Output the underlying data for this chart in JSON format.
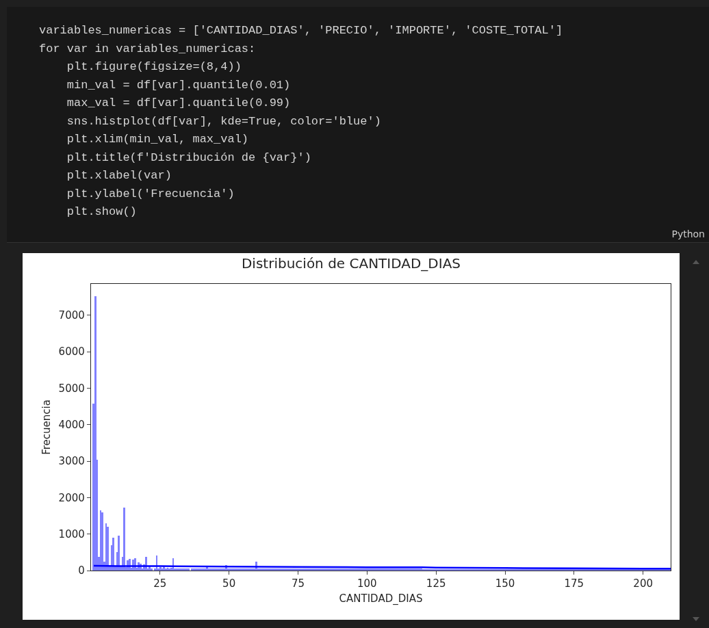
{
  "chart_data": {
    "type": "histogram",
    "title": "Distribución de CANTIDAD_DIAS",
    "xlabel": "CANTIDAD_DIAS",
    "ylabel": "Frecuencia",
    "annotations": [
      "variables_numericas = ['CANTIDAD_DIAS', 'PRECIO', 'IMPORTE', 'COSTE_TOTAL']",
      "for var in variables_numericas:",
      "    plt.figure(figsize=(8,4))",
      "    min_val = df[var].quantile(0.01)",
      "    max_val = df[var].quantile(0.99)",
      "    sns.histplot(df[var], kde=True, color='blue')",
      "    plt.xlim(min_val, max_val)",
      "    plt.title(f'Distribución de {var}')",
      "    plt.xlabel(var)",
      "    plt.ylabel('Frecuencia')",
      "    plt.show()",
      "Python"
    ],
    "bins": [
      0.55,
      1.21,
      1.86,
      2.52,
      3.17,
      3.83,
      4.49,
      5.14,
      5.8,
      6.45,
      7.11,
      7.77,
      8.42,
      9.08,
      9.73,
      10.39,
      11.05,
      11.7,
      12.36,
      13.01,
      13.67,
      14.33,
      14.98,
      15.64,
      16.29,
      16.95,
      17.61,
      18.26,
      18.92,
      19.57,
      20.23,
      20.89,
      21.54,
      22.2,
      22.85,
      23.51,
      24.17,
      24.82,
      25.48,
      26.13,
      26.79,
      27.45,
      28.1,
      28.76,
      29.41,
      30.07,
      35.6,
      36.3,
      41.6,
      42.3,
      48.6,
      49.3,
      59.6,
      60.3,
      120,
      210
    ],
    "values": [
      4580,
      7520,
      3030,
      370,
      1660,
      1600,
      250,
      1300,
      1200,
      120,
      700,
      900,
      120,
      500,
      950,
      120,
      380,
      1720,
      100,
      280,
      320,
      80,
      300,
      340,
      80,
      220,
      190,
      60,
      160,
      380,
      60,
      130,
      60,
      null,
      60,
      420,
      60,
      100,
      60,
      130,
      60,
      80,
      60,
      80,
      340,
      60,
      null,
      60,
      130,
      60,
      150,
      60,
      240,
      50,
      40
    ],
    "color": "#8080ff",
    "series": [
      {
        "type": "line",
        "color": "#0000ff",
        "x": [
          1,
          10,
          25,
          50,
          75,
          100,
          120,
          125,
          150,
          175,
          200,
          210
        ],
        "values": [
          130,
          120,
          120,
          110,
          100,
          90,
          90,
          80,
          70,
          60,
          50,
          50
        ]
      }
    ],
    "xlim": [
      0,
      210
    ],
    "xticks": [
      25,
      50,
      75,
      100,
      125,
      150,
      175,
      200
    ],
    "ylim": [
      0,
      7860
    ],
    "yticks": [
      0,
      1000,
      2000,
      3000,
      4000,
      5000,
      6000,
      7000
    ],
    "grid": false
  }
}
